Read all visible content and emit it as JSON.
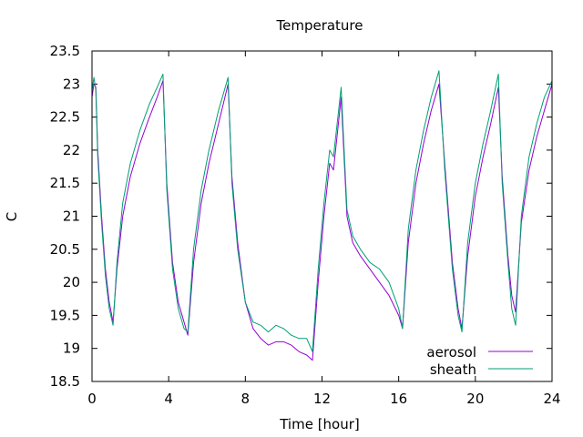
{
  "chart_data": {
    "type": "line",
    "title": "Temperature",
    "xlabel": "Time [hour]",
    "ylabel": "C",
    "xlim": [
      0,
      24
    ],
    "ylim": [
      18.5,
      23.5
    ],
    "xticks": [
      0,
      4,
      8,
      12,
      16,
      20,
      24
    ],
    "yticks": [
      18.5,
      19,
      19.5,
      20,
      20.5,
      21,
      21.5,
      22,
      22.5,
      23,
      23.5
    ],
    "grid": false,
    "legend_position": "bottom-right",
    "series": [
      {
        "name": "aerosol",
        "color": "#9400d3",
        "points": [
          [
            0,
            22.8
          ],
          [
            0.1,
            23.0
          ],
          [
            0.2,
            22.95
          ],
          [
            0.3,
            22.0
          ],
          [
            0.5,
            21.0
          ],
          [
            0.7,
            20.2
          ],
          [
            0.9,
            19.7
          ],
          [
            1.1,
            19.4
          ],
          [
            1.3,
            20.2
          ],
          [
            1.6,
            21.0
          ],
          [
            2.0,
            21.6
          ],
          [
            2.5,
            22.1
          ],
          [
            3.0,
            22.5
          ],
          [
            3.4,
            22.8
          ],
          [
            3.7,
            23.05
          ],
          [
            3.9,
            21.5
          ],
          [
            4.2,
            20.3
          ],
          [
            4.5,
            19.7
          ],
          [
            4.8,
            19.4
          ],
          [
            5.0,
            19.2
          ],
          [
            5.3,
            20.3
          ],
          [
            5.7,
            21.2
          ],
          [
            6.1,
            21.8
          ],
          [
            6.6,
            22.4
          ],
          [
            7.1,
            23.0
          ],
          [
            7.3,
            21.6
          ],
          [
            7.6,
            20.6
          ],
          [
            8.0,
            19.7
          ],
          [
            8.4,
            19.3
          ],
          [
            8.8,
            19.15
          ],
          [
            9.2,
            19.05
          ],
          [
            9.6,
            19.1
          ],
          [
            10.0,
            19.1
          ],
          [
            10.4,
            19.05
          ],
          [
            10.8,
            18.95
          ],
          [
            11.2,
            18.9
          ],
          [
            11.5,
            18.82
          ],
          [
            11.8,
            20.0
          ],
          [
            12.1,
            21.0
          ],
          [
            12.4,
            21.8
          ],
          [
            12.6,
            21.7
          ],
          [
            13.0,
            22.8
          ],
          [
            13.3,
            21.0
          ],
          [
            13.6,
            20.6
          ],
          [
            14.0,
            20.4
          ],
          [
            14.5,
            20.2
          ],
          [
            15.0,
            20.0
          ],
          [
            15.5,
            19.8
          ],
          [
            16.0,
            19.5
          ],
          [
            16.2,
            19.3
          ],
          [
            16.5,
            20.6
          ],
          [
            16.9,
            21.5
          ],
          [
            17.3,
            22.1
          ],
          [
            17.7,
            22.6
          ],
          [
            18.1,
            23.0
          ],
          [
            18.4,
            21.8
          ],
          [
            18.8,
            20.3
          ],
          [
            19.1,
            19.6
          ],
          [
            19.3,
            19.3
          ],
          [
            19.6,
            20.4
          ],
          [
            20.0,
            21.3
          ],
          [
            20.4,
            21.9
          ],
          [
            20.8,
            22.4
          ],
          [
            21.2,
            22.95
          ],
          [
            21.4,
            21.6
          ],
          [
            21.7,
            20.4
          ],
          [
            21.9,
            19.8
          ],
          [
            22.1,
            19.55
          ],
          [
            22.4,
            20.9
          ],
          [
            22.8,
            21.7
          ],
          [
            23.2,
            22.2
          ],
          [
            23.6,
            22.6
          ],
          [
            24.0,
            23.0
          ]
        ]
      },
      {
        "name": "sheath",
        "color": "#009e73",
        "points": [
          [
            0,
            22.9
          ],
          [
            0.1,
            23.1
          ],
          [
            0.2,
            22.9
          ],
          [
            0.3,
            21.9
          ],
          [
            0.5,
            20.9
          ],
          [
            0.7,
            20.1
          ],
          [
            0.9,
            19.6
          ],
          [
            1.1,
            19.35
          ],
          [
            1.3,
            20.3
          ],
          [
            1.6,
            21.2
          ],
          [
            2.0,
            21.8
          ],
          [
            2.5,
            22.3
          ],
          [
            3.0,
            22.7
          ],
          [
            3.4,
            22.95
          ],
          [
            3.7,
            23.15
          ],
          [
            3.9,
            21.4
          ],
          [
            4.2,
            20.2
          ],
          [
            4.5,
            19.6
          ],
          [
            4.8,
            19.3
          ],
          [
            5.0,
            19.25
          ],
          [
            5.3,
            20.5
          ],
          [
            5.7,
            21.4
          ],
          [
            6.1,
            22.0
          ],
          [
            6.6,
            22.6
          ],
          [
            7.1,
            23.1
          ],
          [
            7.3,
            21.5
          ],
          [
            7.6,
            20.5
          ],
          [
            8.0,
            19.7
          ],
          [
            8.4,
            19.4
          ],
          [
            8.8,
            19.35
          ],
          [
            9.2,
            19.25
          ],
          [
            9.6,
            19.35
          ],
          [
            10.0,
            19.3
          ],
          [
            10.4,
            19.2
          ],
          [
            10.8,
            19.15
          ],
          [
            11.2,
            19.15
          ],
          [
            11.5,
            18.95
          ],
          [
            11.8,
            20.2
          ],
          [
            12.1,
            21.2
          ],
          [
            12.4,
            22.0
          ],
          [
            12.6,
            21.9
          ],
          [
            13.0,
            22.95
          ],
          [
            13.3,
            21.1
          ],
          [
            13.6,
            20.7
          ],
          [
            14.0,
            20.5
          ],
          [
            14.5,
            20.3
          ],
          [
            15.0,
            20.2
          ],
          [
            15.5,
            20.0
          ],
          [
            16.0,
            19.6
          ],
          [
            16.2,
            19.3
          ],
          [
            16.5,
            20.8
          ],
          [
            16.9,
            21.7
          ],
          [
            17.3,
            22.3
          ],
          [
            17.7,
            22.8
          ],
          [
            18.1,
            23.2
          ],
          [
            18.4,
            21.7
          ],
          [
            18.8,
            20.2
          ],
          [
            19.1,
            19.5
          ],
          [
            19.3,
            19.25
          ],
          [
            19.6,
            20.6
          ],
          [
            20.0,
            21.5
          ],
          [
            20.4,
            22.1
          ],
          [
            20.8,
            22.6
          ],
          [
            21.2,
            23.15
          ],
          [
            21.4,
            21.5
          ],
          [
            21.7,
            20.3
          ],
          [
            21.9,
            19.6
          ],
          [
            22.1,
            19.35
          ],
          [
            22.4,
            21.0
          ],
          [
            22.8,
            21.9
          ],
          [
            23.2,
            22.4
          ],
          [
            23.6,
            22.8
          ],
          [
            24.0,
            23.05
          ]
        ]
      }
    ]
  }
}
